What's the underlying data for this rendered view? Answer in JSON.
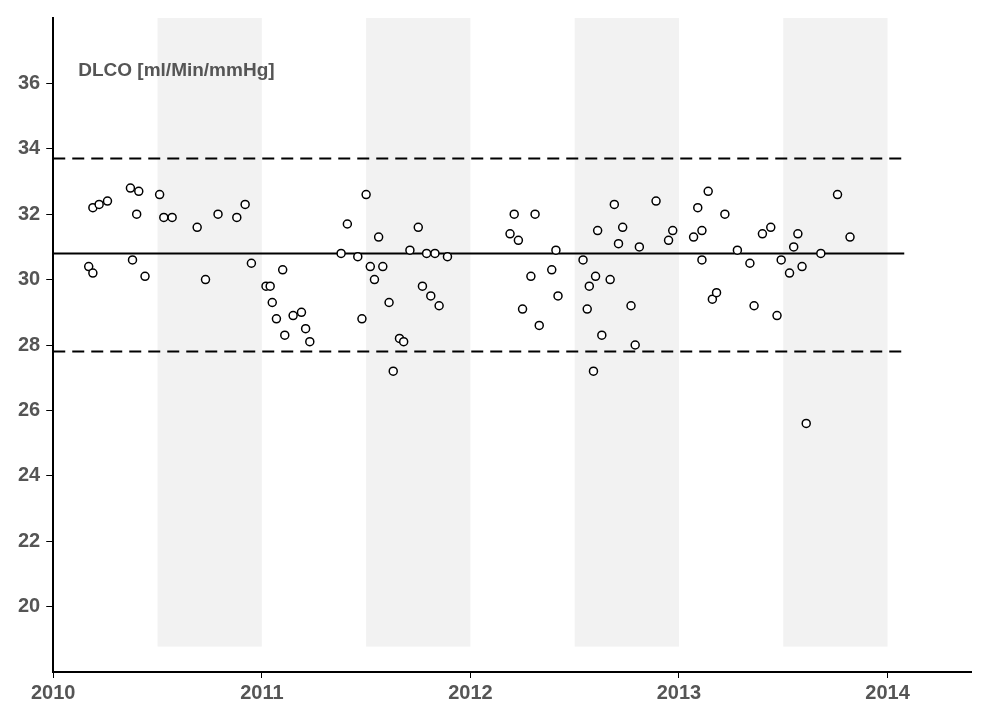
{
  "chart_data": {
    "type": "scatter",
    "ylabel": "DLCO [ml/Min/mmHg]",
    "x": [
      2010.17,
      2010.19,
      2010.19,
      2010.22,
      2010.26,
      2010.37,
      2010.41,
      2010.38,
      2010.4,
      2010.44,
      2010.51,
      2010.53,
      2010.57,
      2010.69,
      2010.73,
      2010.79,
      2010.88,
      2010.92,
      2010.95,
      2011.02,
      2011.04,
      2011.05,
      2011.07,
      2011.1,
      2011.11,
      2011.15,
      2011.19,
      2011.21,
      2011.23,
      2011.38,
      2011.41,
      2011.46,
      2011.48,
      2011.5,
      2011.52,
      2011.54,
      2011.56,
      2011.58,
      2011.61,
      2011.63,
      2011.66,
      2011.68,
      2011.71,
      2011.75,
      2011.77,
      2011.79,
      2011.81,
      2011.83,
      2011.85,
      2011.89,
      2012.19,
      2012.21,
      2012.23,
      2012.25,
      2012.29,
      2012.31,
      2012.33,
      2012.39,
      2012.41,
      2012.42,
      2012.54,
      2012.56,
      2012.57,
      2012.59,
      2012.6,
      2012.61,
      2012.63,
      2012.67,
      2012.69,
      2012.71,
      2012.73,
      2012.77,
      2012.79,
      2012.81,
      2012.89,
      2012.95,
      2012.97,
      2013.07,
      2013.09,
      2013.11,
      2013.11,
      2013.14,
      2013.16,
      2013.18,
      2013.22,
      2013.28,
      2013.34,
      2013.36,
      2013.4,
      2013.44,
      2013.47,
      2013.49,
      2013.53,
      2013.55,
      2013.57,
      2013.59,
      2013.61,
      2013.68,
      2013.76,
      2013.82
    ],
    "values": [
      30.4,
      30.2,
      32.2,
      32.3,
      32.4,
      32.8,
      32.7,
      30.6,
      32.0,
      30.1,
      32.6,
      31.9,
      31.9,
      31.6,
      30.0,
      32.0,
      31.9,
      32.3,
      30.5,
      29.8,
      29.8,
      29.3,
      28.8,
      30.3,
      28.3,
      28.9,
      29.0,
      28.5,
      28.1,
      30.8,
      31.7,
      30.7,
      28.8,
      32.6,
      30.4,
      30.0,
      31.3,
      30.4,
      29.3,
      27.2,
      28.2,
      28.1,
      30.9,
      31.6,
      29.8,
      30.8,
      29.5,
      30.8,
      29.2,
      30.7,
      31.4,
      32.0,
      31.2,
      29.1,
      30.1,
      32.0,
      28.6,
      30.3,
      30.9,
      29.5,
      30.6,
      29.1,
      29.8,
      27.2,
      30.1,
      31.5,
      28.3,
      30.0,
      32.3,
      31.1,
      31.6,
      29.2,
      28.0,
      31.0,
      32.4,
      31.2,
      31.5,
      31.3,
      32.2,
      31.5,
      30.6,
      32.7,
      29.4,
      29.6,
      32.0,
      30.9,
      30.5,
      29.2,
      31.4,
      31.6,
      28.9,
      30.6,
      30.2,
      31.0,
      31.4,
      30.4,
      25.6,
      30.8,
      32.6,
      31.3
    ],
    "color": "#000000",
    "marker": "open_circle",
    "reference_lines": [
      {
        "value": 30.8,
        "x": [
          2010,
          2014.08
        ],
        "line_style": "solid",
        "color": "#000000"
      },
      {
        "value": 33.7,
        "x": [
          2010,
          2014.08
        ],
        "line_style": "dashed",
        "color": "#000000"
      },
      {
        "value": 27.8,
        "x": [
          2010,
          2014.08
        ],
        "line_style": "dashed",
        "color": "#000000"
      }
    ],
    "shaded_ranges": [
      [
        2010.5,
        2011
      ],
      [
        2011.5,
        2012
      ],
      [
        2012.5,
        2013
      ],
      [
        2013.5,
        2014
      ]
    ],
    "shade_color": "#f2f2f2",
    "xlim": [
      2010,
      2014.4
    ],
    "xticks": [
      2010,
      2011,
      2012,
      2013,
      2014
    ],
    "ylim": [
      18,
      38
    ],
    "yticks": [
      20,
      22,
      24,
      26,
      28,
      30,
      32,
      34,
      36
    ],
    "grid": false
  }
}
